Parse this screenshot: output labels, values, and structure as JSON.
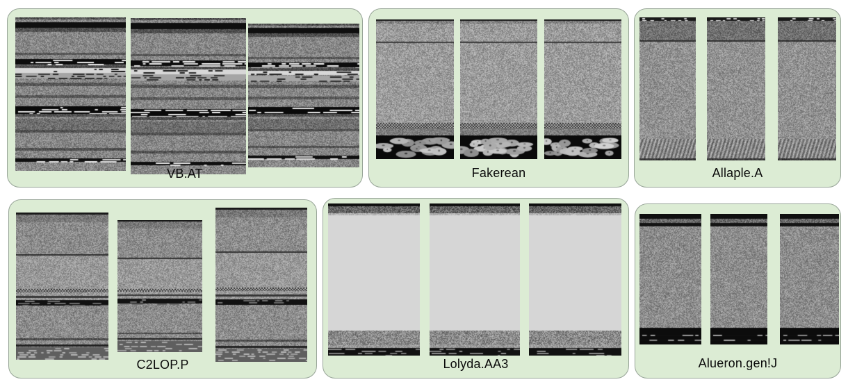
{
  "figure": {
    "type": "malware-family-byteplot-grid",
    "panel_bg": "#dcecd4",
    "panel_border": "#97a497",
    "label_color": "#0a0a0a",
    "panels": [
      {
        "id": "vb-at",
        "label": "VB.AT",
        "sample_count": 3,
        "pattern": {
          "base": {
            "type": "noise",
            "lo": 95,
            "hi": 175
          },
          "bands": [
            {
              "t": 0.0,
              "h": 0.015,
              "type": "noise",
              "lo": 40,
              "hi": 120
            },
            {
              "t": 0.03,
              "h": 0.04,
              "type": "solid",
              "v": 15
            },
            {
              "t": 0.07,
              "h": 0.025,
              "type": "noise",
              "lo": 50,
              "hi": 110
            },
            {
              "t": 0.23,
              "h": 0.015,
              "type": "noise",
              "lo": 60,
              "hi": 110
            },
            {
              "t": 0.27,
              "h": 0.035,
              "type": "dashes",
              "bg": 12,
              "fg": 235,
              "seg": 28,
              "density": 0.55
            },
            {
              "t": 0.31,
              "h": 0.018,
              "type": "noise",
              "lo": 50,
              "hi": 100
            },
            {
              "t": 0.33,
              "h": 0.03,
              "type": "dashes",
              "bg": 215,
              "fg": 30,
              "seg": 18,
              "density": 0.45
            },
            {
              "t": 0.362,
              "h": 0.038,
              "type": "dashes",
              "bg": 165,
              "fg": 50,
              "seg": 14,
              "density": 0.5
            },
            {
              "t": 0.425,
              "h": 0.022,
              "type": "noise",
              "lo": 55,
              "hi": 115
            },
            {
              "t": 0.505,
              "h": 0.018,
              "type": "noise",
              "lo": 60,
              "hi": 115
            },
            {
              "t": 0.58,
              "h": 0.048,
              "type": "dashes",
              "bg": 10,
              "fg": 230,
              "seg": 30,
              "density": 0.5
            },
            {
              "t": 0.63,
              "h": 0.02,
              "type": "noise",
              "lo": 50,
              "hi": 110
            },
            {
              "t": 0.66,
              "h": 0.075,
              "type": "noise",
              "lo": 75,
              "hi": 145
            },
            {
              "t": 0.735,
              "h": 0.016,
              "type": "noise",
              "lo": 55,
              "hi": 105
            },
            {
              "t": 0.85,
              "h": 0.016,
              "type": "noise",
              "lo": 55,
              "hi": 105
            },
            {
              "t": 0.92,
              "h": 0.022,
              "type": "dashes",
              "bg": 15,
              "fg": 225,
              "seg": 24,
              "density": 0.5
            }
          ]
        }
      },
      {
        "id": "fakerean",
        "label": "Fakerean",
        "sample_count": 3,
        "pattern": {
          "base": {
            "type": "noise",
            "lo": 115,
            "hi": 195
          },
          "bands": [
            {
              "t": 0.0,
              "h": 0.012,
              "type": "solid",
              "v": 25
            },
            {
              "t": 0.012,
              "h": 0.02,
              "type": "noise",
              "lo": 90,
              "hi": 170
            },
            {
              "t": 0.16,
              "h": 0.008,
              "type": "solid",
              "v": 60
            },
            {
              "t": 0.74,
              "h": 0.045,
              "type": "dots"
            },
            {
              "t": 0.785,
              "h": 0.045,
              "type": "noise",
              "lo": 90,
              "hi": 160
            },
            {
              "t": 0.83,
              "h": 0.17,
              "type": "coins"
            }
          ]
        }
      },
      {
        "id": "allaple-a",
        "label": "Allaple.A",
        "sample_count": 3,
        "pattern": {
          "base": {
            "type": "noise",
            "lo": 105,
            "hi": 185
          },
          "bands": [
            {
              "t": 0.0,
              "h": 0.022,
              "type": "dashes",
              "bg": 25,
              "fg": 215,
              "seg": 4,
              "density": 0.5
            },
            {
              "t": 0.022,
              "h": 0.14,
              "type": "noise",
              "lo": 75,
              "hi": 150
            },
            {
              "t": 0.162,
              "h": 0.012,
              "type": "solid",
              "v": 45
            },
            {
              "t": 0.85,
              "h": 0.135,
              "type": "vbars"
            },
            {
              "t": 0.985,
              "h": 0.015,
              "type": "noise",
              "lo": 35,
              "hi": 85
            }
          ]
        }
      },
      {
        "id": "c2lop-p",
        "label": "C2LOP.P",
        "sample_count": 3,
        "pattern": {
          "base": {
            "type": "noise",
            "lo": 100,
            "hi": 180
          },
          "bands": [
            {
              "t": 0.0,
              "h": 0.012,
              "type": "solid",
              "v": 25
            },
            {
              "t": 0.012,
              "h": 0.05,
              "type": "noise",
              "lo": 85,
              "hi": 155
            },
            {
              "t": 0.285,
              "h": 0.01,
              "type": "solid",
              "v": 50
            },
            {
              "t": 0.295,
              "h": 0.3,
              "type": "noise",
              "lo": 115,
              "hi": 190
            },
            {
              "t": 0.52,
              "h": 0.022,
              "type": "dots"
            },
            {
              "t": 0.565,
              "h": 0.013,
              "type": "solid",
              "v": 55
            },
            {
              "t": 0.595,
              "h": 0.038,
              "type": "dashes",
              "bg": 18,
              "fg": 110,
              "seg": 16,
              "density": 0.35
            },
            {
              "t": 0.855,
              "h": 0.012,
              "type": "noise",
              "lo": 50,
              "hi": 100
            },
            {
              "t": 0.895,
              "h": 0.012,
              "type": "solid",
              "v": 35
            },
            {
              "t": 0.915,
              "h": 0.085,
              "type": "dashes",
              "bg": 95,
              "fg": 170,
              "seg": 10,
              "density": 0.5
            }
          ]
        }
      },
      {
        "id": "lolyda-aa3",
        "label": "Lolyda.AA3",
        "sample_count": 3,
        "pattern": {
          "base": {
            "type": "solid",
            "v": 214
          },
          "bands": [
            {
              "t": 0.0,
              "h": 0.018,
              "type": "solid",
              "v": 15
            },
            {
              "t": 0.018,
              "h": 0.045,
              "type": "noise",
              "lo": 50,
              "hi": 150
            },
            {
              "t": 0.063,
              "h": 0.012,
              "type": "noise",
              "lo": 150,
              "hi": 210
            },
            {
              "t": 0.835,
              "h": 0.095,
              "type": "noise",
              "lo": 85,
              "hi": 190
            },
            {
              "t": 0.93,
              "h": 0.018,
              "type": "noise",
              "lo": 120,
              "hi": 190
            },
            {
              "t": 0.948,
              "h": 0.052,
              "type": "dashes",
              "bg": 18,
              "fg": 130,
              "seg": 20,
              "density": 0.25
            }
          ]
        }
      },
      {
        "id": "alueron-gen-j",
        "label": "Alueron.gen!J",
        "sample_count": 3,
        "pattern": {
          "base": {
            "type": "noise",
            "lo": 100,
            "hi": 180
          },
          "bands": [
            {
              "t": 0.0,
              "h": 0.038,
              "type": "solid",
              "v": 15
            },
            {
              "t": 0.038,
              "h": 0.03,
              "type": "noise",
              "lo": 60,
              "hi": 150
            },
            {
              "t": 0.068,
              "h": 0.026,
              "type": "solid",
              "v": 20
            },
            {
              "t": 0.094,
              "h": 0.012,
              "type": "noise",
              "lo": 110,
              "hi": 180
            },
            {
              "t": 0.87,
              "h": 0.13,
              "type": "solid",
              "v": 12
            },
            {
              "t": 0.925,
              "h": 0.01,
              "type": "dashes",
              "bg": 15,
              "fg": 150,
              "seg": 14,
              "density": 0.6
            },
            {
              "t": 0.965,
              "h": 0.01,
              "type": "dashes",
              "bg": 15,
              "fg": 150,
              "seg": 14,
              "density": 0.6
            }
          ]
        }
      }
    ]
  }
}
